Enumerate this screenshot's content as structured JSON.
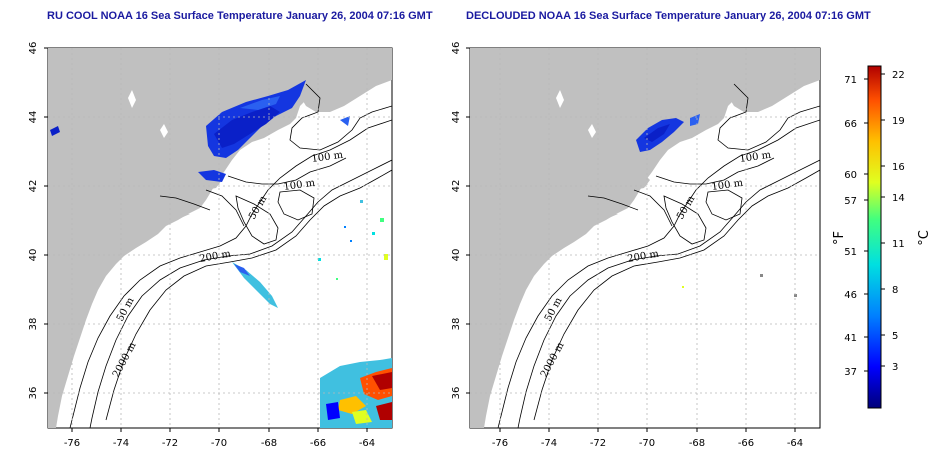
{
  "titles": {
    "left": "RU COOL NOAA 16 Sea Surface Temperature January 26, 2004 07:16 GMT",
    "right": "DECLOUDED NOAA 16 Sea Surface Temperature January 26, 2004 07:16 GMT"
  },
  "axes": {
    "lon_ticks": [
      "-76",
      "-74",
      "-72",
      "-70",
      "-68",
      "-66",
      "-64"
    ],
    "lat_ticks": [
      "46",
      "44",
      "42",
      "40",
      "38",
      "36"
    ]
  },
  "contour_labels": {
    "left": [
      "100 m",
      "100 m",
      "50 m",
      "200 m",
      "50 m",
      "2000 m"
    ],
    "right": [
      "100 m",
      "100 m",
      "50 m",
      "200 m",
      "50 m",
      "2000 m"
    ]
  },
  "colorbar": {
    "left_unit": "°F",
    "right_unit": "°C",
    "fahrenheit_ticks": [
      "71",
      "66",
      "60",
      "57",
      "51",
      "46",
      "41",
      "37"
    ],
    "celsius_ticks": [
      "22",
      "19",
      "16",
      "14",
      "11",
      "8",
      "5",
      "3"
    ],
    "colors": [
      "#00007a",
      "#0000ff",
      "#0080ff",
      "#00e0e0",
      "#40ff80",
      "#e0ff20",
      "#ffc000",
      "#ff5000",
      "#b00000"
    ]
  },
  "colors": {
    "land": "#c0c0c0",
    "grid": "#b8b8b8",
    "title": "#1a1aa0"
  }
}
